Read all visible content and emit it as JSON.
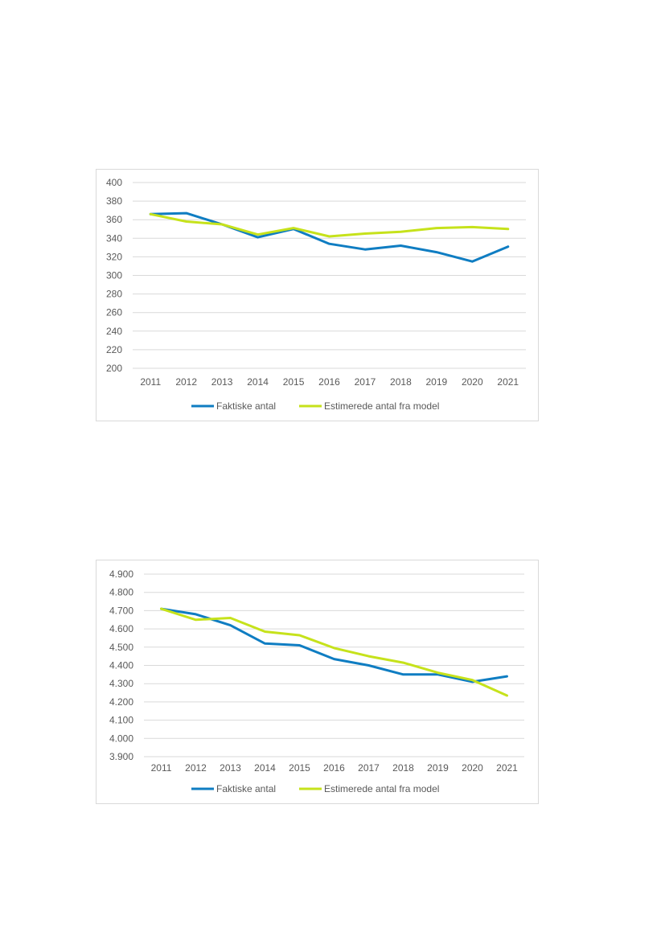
{
  "chart_data": [
    {
      "type": "line",
      "title": "",
      "xlabel": "",
      "ylabel": "",
      "categories": [
        "2011",
        "2012",
        "2013",
        "2014",
        "2015",
        "2016",
        "2017",
        "2018",
        "2019",
        "2020",
        "2021"
      ],
      "ylim": [
        200,
        400
      ],
      "yticks": [
        200,
        220,
        240,
        260,
        280,
        300,
        320,
        340,
        360,
        380,
        400
      ],
      "ytick_labels": [
        "200",
        "220",
        "240",
        "260",
        "280",
        "300",
        "320",
        "340",
        "360",
        "380",
        "400"
      ],
      "grid": true,
      "legend_position": "bottom",
      "series": [
        {
          "name": "Faktiske antal",
          "color": "#0f7dc2",
          "values": [
            366,
            367,
            355,
            341,
            350,
            334,
            328,
            332,
            325,
            315,
            331
          ]
        },
        {
          "name": "Estimerede antal fra model",
          "color": "#c6e21b",
          "values": [
            366,
            358,
            355,
            344,
            351,
            342,
            345,
            347,
            351,
            352,
            350
          ]
        }
      ]
    },
    {
      "type": "line",
      "title": "",
      "xlabel": "",
      "ylabel": "",
      "categories": [
        "2011",
        "2012",
        "2013",
        "2014",
        "2015",
        "2016",
        "2017",
        "2018",
        "2019",
        "2020",
        "2021"
      ],
      "ylim": [
        3900,
        4900
      ],
      "yticks": [
        3900,
        4000,
        4100,
        4200,
        4300,
        4400,
        4500,
        4600,
        4700,
        4800,
        4900
      ],
      "ytick_labels": [
        "3.900",
        "4.000",
        "4.100",
        "4.200",
        "4.300",
        "4.400",
        "4.500",
        "4.600",
        "4.700",
        "4.800",
        "4.900"
      ],
      "grid": true,
      "legend_position": "bottom",
      "series": [
        {
          "name": "Faktiske antal",
          "color": "#0f7dc2",
          "values": [
            4710,
            4680,
            4620,
            4520,
            4510,
            4435,
            4400,
            4350,
            4350,
            4310,
            4340
          ]
        },
        {
          "name": "Estimerede antal fra model",
          "color": "#c6e21b",
          "values": [
            4710,
            4650,
            4660,
            4585,
            4565,
            4495,
            4450,
            4415,
            4360,
            4320,
            4235
          ]
        }
      ]
    }
  ]
}
